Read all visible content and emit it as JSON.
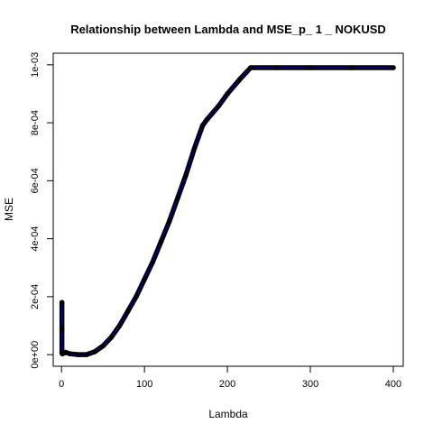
{
  "chart_data": {
    "type": "scatter",
    "title": "Relationship between Lambda and MSE_p_ 1 _ NOKUSD",
    "xlabel": "Lambda",
    "ylabel": "MSE",
    "xlim": [
      -10,
      412
    ],
    "ylim": [
      -4e-05,
      0.00104
    ],
    "x_ticks": [
      0,
      100,
      200,
      300,
      400
    ],
    "x_tick_labels": [
      "0",
      "100",
      "200",
      "300",
      "400"
    ],
    "y_ticks": [
      0,
      0.0002,
      0.0004,
      0.0006,
      0.0008,
      0.001
    ],
    "y_tick_labels": [
      "0e+00",
      "2e-04",
      "4e-04",
      "6e-04",
      "8e-04",
      "1e-03"
    ],
    "grid": false,
    "legend": "none",
    "point_color": "#000000",
    "line_color": "#00008B",
    "series": [
      {
        "points": [
          [
            0.5,
            0.00018
          ],
          [
            0.5,
            9e-05
          ],
          [
            0.5,
            5e-06
          ],
          [
            1,
            3e-06
          ],
          [
            5,
            8e-06
          ],
          [
            10,
            3e-06
          ],
          [
            20,
            0.0
          ],
          [
            30,
            0.0
          ],
          [
            40,
            1e-05
          ],
          [
            50,
            3e-05
          ],
          [
            60,
            6e-05
          ],
          [
            70,
            0.0001
          ],
          [
            80,
            0.00015
          ],
          [
            90,
            0.0002
          ],
          [
            100,
            0.00026
          ],
          [
            110,
            0.00032
          ],
          [
            120,
            0.00039
          ],
          [
            130,
            0.00046
          ],
          [
            140,
            0.00054
          ],
          [
            150,
            0.00062
          ],
          [
            160,
            0.00071
          ],
          [
            170,
            0.00079
          ],
          [
            175,
            0.00081
          ],
          [
            190,
            0.00086
          ],
          [
            200,
            0.0009
          ],
          [
            215,
            0.00095
          ],
          [
            228,
            0.00099
          ],
          [
            260,
            0.00099
          ],
          [
            300,
            0.00099
          ],
          [
            350,
            0.00099
          ],
          [
            400,
            0.00099
          ]
        ]
      }
    ]
  }
}
